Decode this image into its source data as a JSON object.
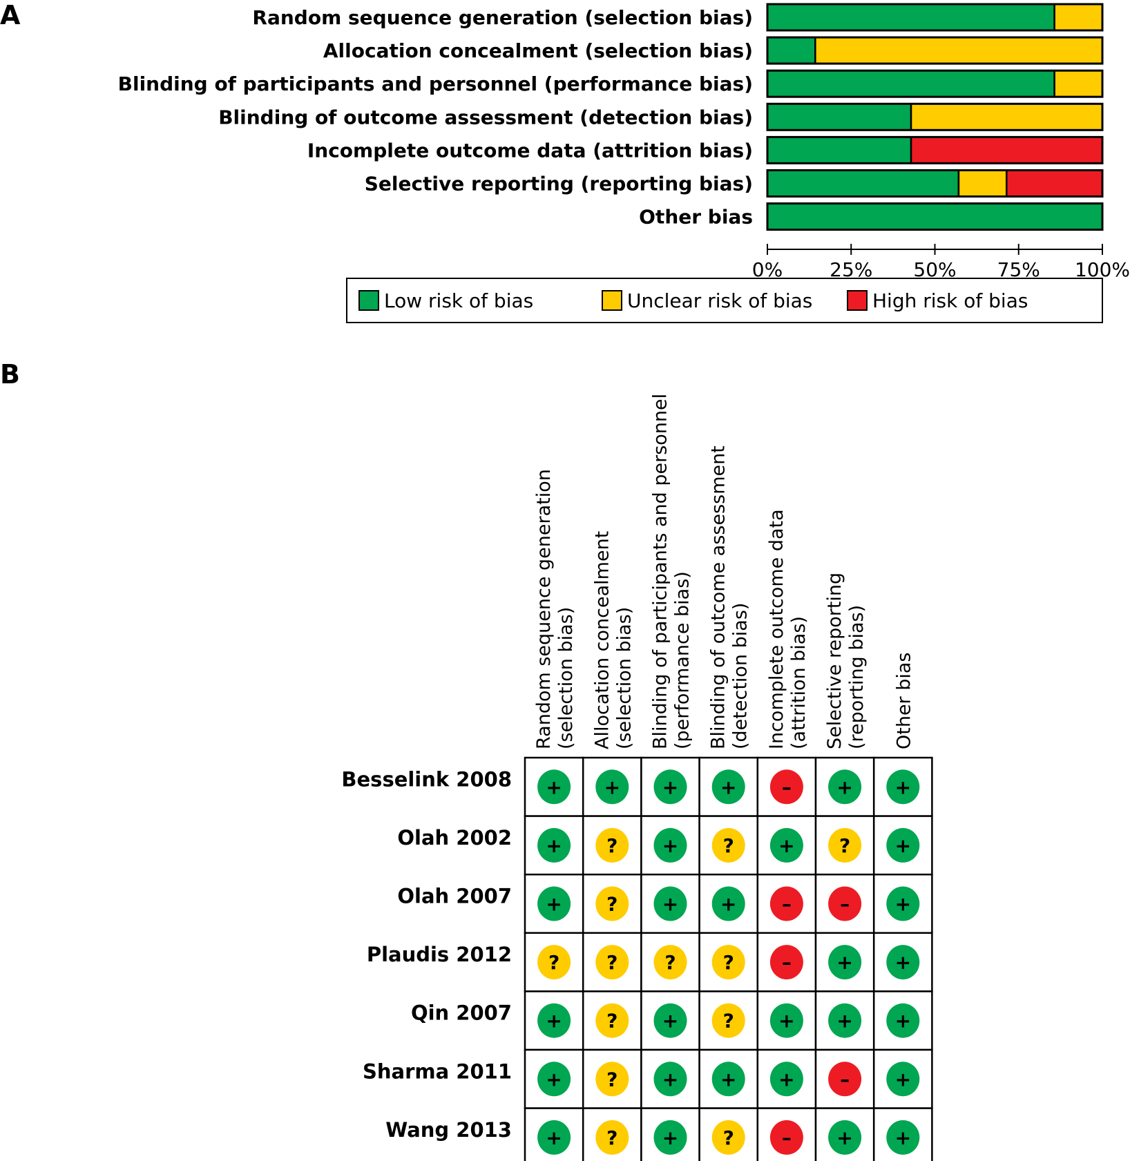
{
  "panels": {
    "a_label": "A",
    "b_label": "B"
  },
  "colors": {
    "low": "#00a651",
    "unclear": "#ffcc00",
    "high": "#ed1c24",
    "border": "#000000"
  },
  "symbols": {
    "low": "+",
    "unclear": "?",
    "high": "–"
  },
  "chart_data": [
    {
      "type": "bar",
      "orientation": "horizontal-stacked-100",
      "title": "",
      "categories": [
        "Random sequence generation (selection bias)",
        "Allocation concealment (selection bias)",
        "Blinding of participants and personnel (performance bias)",
        "Blinding of outcome assessment (detection bias)",
        "Incomplete outcome data (attrition bias)",
        "Selective reporting (reporting bias)",
        "Other bias"
      ],
      "series": [
        {
          "name": "Low risk of bias",
          "key": "low",
          "values": [
            85.7,
            14.3,
            85.7,
            42.9,
            42.9,
            57.1,
            100
          ]
        },
        {
          "name": "Unclear risk of bias",
          "key": "unclear",
          "values": [
            14.3,
            85.7,
            14.3,
            57.1,
            0,
            14.3,
            0
          ]
        },
        {
          "name": "High risk of bias",
          "key": "high",
          "values": [
            0,
            0,
            0,
            0,
            57.1,
            28.6,
            0
          ]
        }
      ],
      "xlim": [
        0,
        100
      ],
      "xticks": [
        "0%",
        "25%",
        "50%",
        "75%",
        "100%"
      ],
      "xlabel": "",
      "ylabel": "",
      "legend": {
        "placement": "bottom",
        "entries": [
          "Low risk of bias",
          "Unclear risk of bias",
          "High risk of bias"
        ]
      },
      "grid": false
    },
    {
      "type": "table",
      "title": "Risk of bias summary",
      "columns": [
        "Random sequence generation (selection bias)",
        "Allocation concealment (selection bias)",
        "Blinding of participants and personnel (performance bias)",
        "Blinding of outcome assessment (detection bias)",
        "Incomplete outcome data (attrition bias)",
        "Selective reporting (reporting bias)",
        "Other bias"
      ],
      "column_headers": [
        [
          "Random sequence generation",
          "(selection bias)"
        ],
        [
          "Allocation concealment",
          "(selection bias)"
        ],
        [
          "Blinding of participants and personnel",
          "(performance bias)"
        ],
        [
          "Blinding of outcome assessment",
          "(detection bias)"
        ],
        [
          "Incomplete outcome data",
          "(attrition bias)"
        ],
        [
          "Selective reporting",
          "(reporting bias)"
        ],
        [
          "Other bias"
        ]
      ],
      "rows": [
        {
          "study": "Besselink 2008",
          "ratings": [
            "low",
            "low",
            "low",
            "low",
            "high",
            "low",
            "low"
          ]
        },
        {
          "study": "Olah 2002",
          "ratings": [
            "low",
            "unclear",
            "low",
            "unclear",
            "low",
            "unclear",
            "low"
          ]
        },
        {
          "study": "Olah 2007",
          "ratings": [
            "low",
            "unclear",
            "low",
            "low",
            "high",
            "high",
            "low"
          ]
        },
        {
          "study": "Plaudis 2012",
          "ratings": [
            "unclear",
            "unclear",
            "unclear",
            "unclear",
            "high",
            "low",
            "low"
          ]
        },
        {
          "study": "Qin 2007",
          "ratings": [
            "low",
            "unclear",
            "low",
            "unclear",
            "low",
            "low",
            "low"
          ]
        },
        {
          "study": "Sharma 2011",
          "ratings": [
            "low",
            "unclear",
            "low",
            "low",
            "low",
            "high",
            "low"
          ]
        },
        {
          "study": "Wang 2013",
          "ratings": [
            "low",
            "unclear",
            "low",
            "unclear",
            "high",
            "low",
            "low"
          ]
        }
      ]
    }
  ]
}
